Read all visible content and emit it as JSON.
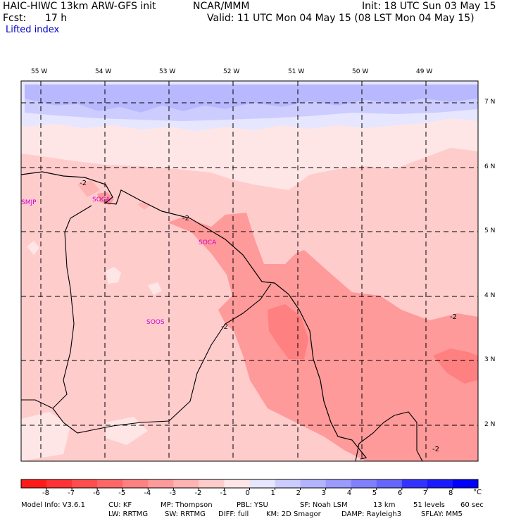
{
  "header": {
    "model": "HAIC-HIWC 13km ARW-GFS init",
    "center": "NCAR/MMM",
    "init": "Init: 18 UTC Sun 03 May 15",
    "fcst_label": "Fcst:",
    "fcst_value": "17 h",
    "valid": "Valid: 11 UTC Mon 04 May 15 (08 LST Mon 04 May 15)",
    "field": "Lifted index"
  },
  "axes": {
    "lon_labels": [
      "55 W",
      "54 W",
      "53 W",
      "52 W",
      "51 W",
      "50 W",
      "49 W"
    ],
    "lat_labels": [
      "7 N",
      "6 N",
      "5 N",
      "4 N",
      "3 N",
      "2 N"
    ]
  },
  "stations": [
    "SMJP",
    "SOCA",
    "SOCA",
    "SOOS"
  ],
  "contour_labels": [
    "-2",
    "-2",
    "-2",
    "-2",
    "-2"
  ],
  "colorbar": {
    "ticks": [
      "-8",
      "-7",
      "-6",
      "-5",
      "-4",
      "-3",
      "-2",
      "-1",
      "0",
      "1",
      "2",
      "3",
      "4",
      "5",
      "6",
      "7",
      "8"
    ],
    "unit": "°C",
    "colors": [
      "#ff1a1a",
      "#ff3333",
      "#ff4d4d",
      "#ff6666",
      "#ff8080",
      "#ff9a9a",
      "#ffb3b3",
      "#ffcccc",
      "#ffe6e6",
      "#e6e6ff",
      "#ccccff",
      "#b3b3ff",
      "#9a9aff",
      "#8080ff",
      "#6666ff",
      "#3333ff",
      "#1a1aff",
      "#0000ff"
    ]
  },
  "footer": {
    "line1": [
      "Model Info: V3.6.1",
      "CU: KF",
      "MP: Thompson",
      "PBL: YSU",
      "SF: Noah LSM",
      "13 km",
      "51 levels",
      "60 sec"
    ],
    "line2": [
      "LW: RRTMG",
      "SW: RRTMG",
      "DIFF: full",
      "KM: 2D Smagor",
      "DAMP: Rayleigh3",
      "SFLAY: MM5"
    ]
  }
}
